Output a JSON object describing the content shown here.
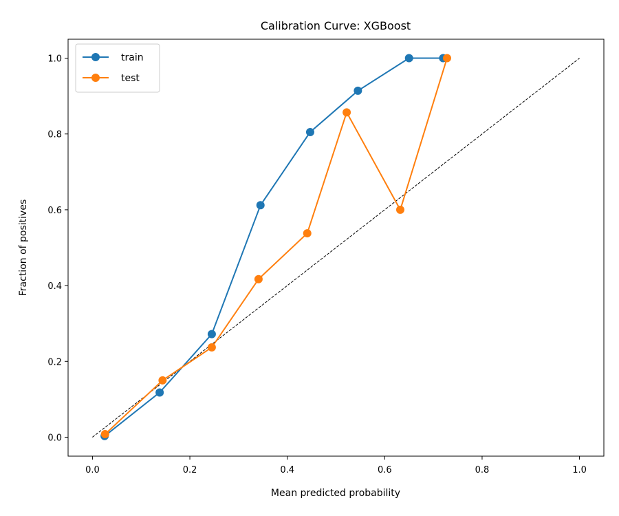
{
  "chart_data": {
    "type": "line",
    "title": "Calibration Curve: XGBoost",
    "xlabel": "Mean predicted probability",
    "ylabel": "Fraction of positives",
    "xlim": [
      -0.05,
      1.05
    ],
    "ylim": [
      -0.05,
      1.05
    ],
    "xticks": [
      0.0,
      0.2,
      0.4,
      0.6,
      0.8,
      1.0
    ],
    "yticks": [
      0.0,
      0.2,
      0.4,
      0.6,
      0.8,
      1.0
    ],
    "grid": false,
    "legend_position": "top-left",
    "reference_line": {
      "x": [
        0,
        1
      ],
      "y": [
        0,
        1
      ],
      "style": "dashed",
      "color": "#000000"
    },
    "series": [
      {
        "name": "train",
        "color": "#1f77b4",
        "x": [
          0.025,
          0.138,
          0.245,
          0.345,
          0.447,
          0.545,
          0.65,
          0.72
        ],
        "y": [
          0.003,
          0.118,
          0.272,
          0.612,
          0.805,
          0.914,
          1.0,
          1.0
        ]
      },
      {
        "name": "test",
        "color": "#ff7f0e",
        "x": [
          0.026,
          0.144,
          0.245,
          0.341,
          0.441,
          0.522,
          0.632,
          0.728
        ],
        "y": [
          0.008,
          0.15,
          0.237,
          0.417,
          0.538,
          0.857,
          0.6,
          1.0
        ]
      }
    ]
  }
}
